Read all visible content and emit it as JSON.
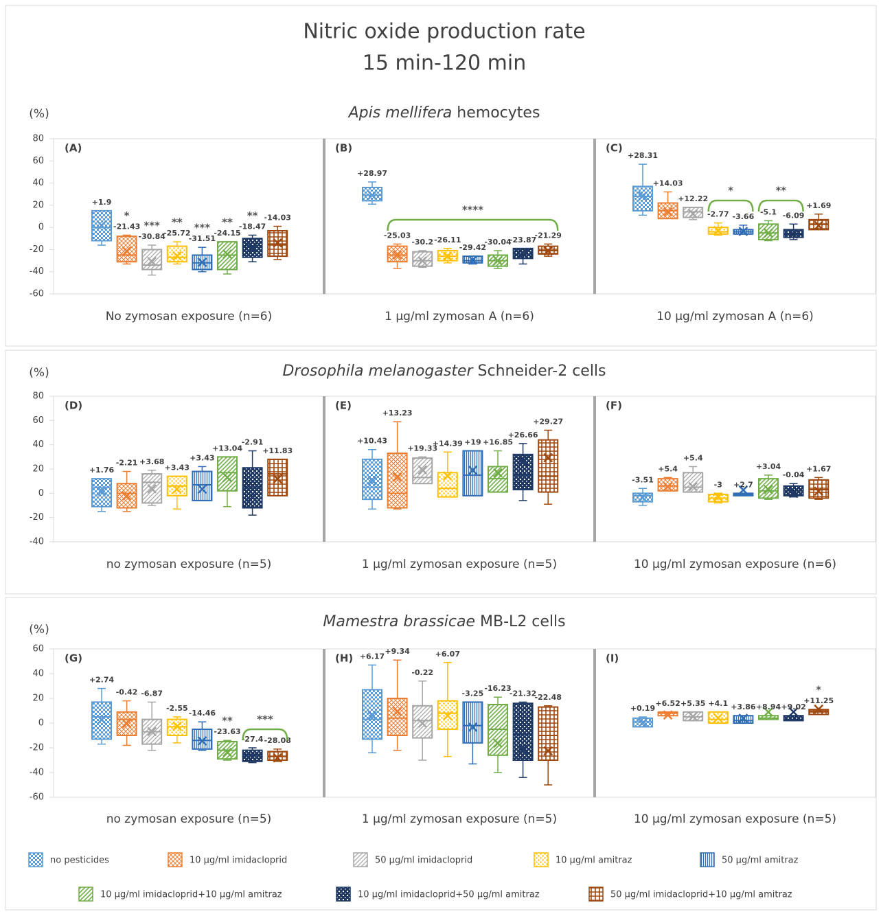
{
  "title": [
    "Nitric oxide production rate",
    "15 min-120 min"
  ],
  "legend": [
    {
      "name": "no pesticides",
      "color": "#5b9bd5"
    },
    {
      "name": "10 µg/ml imidacloprid",
      "color": "#ed7d31"
    },
    {
      "name": "50 µg/ml imidacloprid",
      "color": "#a5a5a5"
    },
    {
      "name": "10 µg/ml amitraz",
      "color": "#ffc000"
    },
    {
      "name": "50 µg/ml amitraz",
      "color": "#2f6db5"
    },
    {
      "name": "10 µg/ml imidacloprid+10 µg/ml amitraz",
      "color": "#70ad47"
    },
    {
      "name": "10 µg/ml imidacloprid+50 µg/ml amitraz",
      "color": "#1f3864"
    },
    {
      "name": "50 µg/ml imidacloprid+10 µg/ml amitraz",
      "color": "#9e480e"
    }
  ],
  "chart_data": [
    {
      "type": "box",
      "title_italic": "Apis mellifera",
      "title": "hemocytes",
      "unit": "(%)",
      "ylim": [
        -60,
        80
      ],
      "yticks": [
        -60,
        -40,
        -20,
        0,
        20,
        40,
        60,
        80
      ],
      "panels": [
        {
          "title": "(A)",
          "xlabel": "No zymosan exposure (n=6)",
          "boxes": {
            "whislo": [
              -16,
              -33,
              -43,
              -33,
              -40,
              -42,
              -31,
              -29
            ],
            "q1": [
              -12,
              -31,
              -38,
              -31,
              -38,
              -38,
              -27,
              -26
            ],
            "median": [
              0,
              -25,
              -34,
              -27,
              -32,
              -25,
              -18,
              -15
            ],
            "q3": [
              15,
              -8,
              -20,
              -17,
              -25,
              -13,
              -10,
              -3
            ],
            "whishi": [
              15,
              -7,
              -16,
              -13,
              -18,
              -13,
              -7,
              1
            ]
          },
          "values": [
            1.9,
            -21.43,
            -30.84,
            -25.72,
            -31.51,
            -24.15,
            -18.47,
            -14.03
          ],
          "value_labels": [
            "+1.9",
            "-21.43",
            "-30.84",
            "-25.72",
            "-31.51",
            "-24.15",
            "-18.47",
            "-14.03"
          ],
          "stars": [
            null,
            "*",
            "***",
            "**",
            "***",
            "**",
            "**",
            null
          ],
          "brackets": []
        },
        {
          "title": "(B)",
          "xlabel": "1 µg/ml zymosan A (n=6)",
          "boxes": {
            "whislo": [
              21,
              -37,
              -36,
              -32,
              -33,
              -37,
              -33,
              -26
            ],
            "q1": [
              24,
              -31,
              -35,
              -30,
              -32,
              -35,
              -28,
              -24
            ],
            "median": [
              29,
              -25,
              -30,
              -26,
              -30,
              -30,
              -24,
              -21
            ],
            "q3": [
              36,
              -17,
              -22,
              -21,
              -26,
              -25,
              -19,
              -17
            ],
            "whishi": [
              41,
              -15,
              -21,
              -19,
              -26,
              -21,
              -19,
              -15
            ]
          },
          "values": [
            28.97,
            -25.03,
            -30.2,
            -26.11,
            -29.42,
            -30.04,
            -23.87,
            -21.29
          ],
          "value_labels": [
            "+28.97",
            "-25.03",
            "-30.2",
            "-26.11",
            "-29.42",
            "-30.04",
            "-23.87",
            "-21.29"
          ],
          "stars": [
            null,
            null,
            null,
            null,
            null,
            null,
            null,
            null
          ],
          "brackets": [
            {
              "label": "****"
            }
          ]
        },
        {
          "title": "(C)",
          "xlabel": "10 µg/ml  zymosan A (n=6)",
          "boxes": {
            "whislo": [
              11,
              8,
              7,
              -7,
              -6,
              -12,
              -11,
              -2
            ],
            "q1": [
              15,
              8,
              9,
              -6,
              -6,
              -11,
              -9,
              -2
            ],
            "median": [
              28,
              15,
              14,
              -4,
              -4,
              -5,
              -6,
              3
            ],
            "q3": [
              37,
              22,
              18,
              0,
              -2,
              3,
              -2,
              7
            ],
            "whishi": [
              57,
              32,
              18,
              4,
              2,
              6,
              3,
              12
            ]
          },
          "values": [
            28.31,
            14.03,
            12.22,
            -2.77,
            -3.66,
            -5.1,
            -6.09,
            1.69
          ],
          "value_labels": [
            "+28.31",
            "+14.03",
            "+12.22",
            "-2.77",
            "-3.66",
            "-5.1",
            "-6.09",
            "+1.69"
          ],
          "stars": [
            null,
            null,
            null,
            null,
            null,
            null,
            null,
            null
          ],
          "brackets": [
            {
              "label": "*"
            },
            {
              "label": "**"
            }
          ]
        }
      ]
    },
    {
      "type": "box",
      "title_italic": "Drosophila melanogaster",
      "title": "Schneider-2 cells",
      "unit": "(%)",
      "ylim": [
        -40,
        80
      ],
      "yticks": [
        -40,
        -20,
        0,
        20,
        40,
        60,
        80
      ],
      "panels": [
        {
          "title": "(D)",
          "xlabel": "no zymosan exposure (n=5)",
          "boxes": {
            "whislo": [
              -15,
              -15,
              -10,
              -13,
              -6,
              -11,
              -18,
              -2
            ],
            "q1": [
              -11,
              -12,
              -8,
              -2,
              -6,
              2,
              -12,
              -2
            ],
            "median": [
              5,
              0,
              9,
              6,
              7,
              17,
              5,
              16
            ],
            "q3": [
              12,
              8,
              16,
              14,
              18,
              30,
              21,
              28
            ],
            "whishi": [
              12,
              18,
              19,
              14,
              22,
              30,
              35,
              28
            ]
          },
          "values": [
            1.76,
            -2.21,
            3.68,
            3.43,
            3.43,
            13.04,
            -2.91,
            11.83
          ],
          "value_labels": [
            "+1.76",
            "-2.21",
            "+3.68",
            "+3.43",
            "+3.43",
            "+13.04",
            "-2.91",
            "+11.83"
          ],
          "stars": [
            null,
            null,
            null,
            null,
            null,
            null,
            null,
            null
          ],
          "brackets": []
        },
        {
          "title": "(E)",
          "xlabel": "1 µg/ml zymosan exposure (n=5)",
          "boxes": {
            "whislo": [
              -13,
              -13,
              8,
              -3,
              -2,
              1,
              -6,
              -9
            ],
            "q1": [
              -5,
              -12,
              8,
              -3,
              -2,
              1,
              3,
              1
            ],
            "median": [
              5,
              0,
              13,
              4,
              15,
              12,
              15,
              14
            ],
            "q3": [
              28,
              33,
              29,
              17,
              35,
              22,
              32,
              44
            ],
            "whishi": [
              36,
              59,
              30,
              34,
              35,
              35,
              41,
              52
            ]
          },
          "values": [
            10.43,
            13.23,
            19.33,
            14.39,
            19,
            16.85,
            26.66,
            29.27
          ],
          "value_labels": [
            "+10.43",
            "+13.23",
            "+19.33",
            "+14.39",
            "+19",
            "+16.85",
            "+26.66",
            "+29.27"
          ],
          "stars": [
            null,
            null,
            null,
            null,
            null,
            null,
            null,
            null
          ],
          "brackets": []
        },
        {
          "title": "(F)",
          "xlabel": "10 µg/ml zymosan exposure (n=6)",
          "boxes": {
            "whislo": [
              -10,
              2,
              1,
              -8,
              -2,
              -5,
              -3,
              -5
            ],
            "q1": [
              -7,
              2,
              1,
              -7,
              -2,
              -4,
              -2,
              -4
            ],
            "median": [
              -2,
              6,
              5,
              -4,
              -1,
              2,
              2,
              3
            ],
            "q3": [
              0,
              12,
              17,
              -1,
              0,
              12,
              6,
              11
            ],
            "whishi": [
              4,
              13,
              22,
              0,
              0,
              15,
              8,
              13
            ]
          },
          "values": [
            -3.51,
            5.4,
            5.4,
            -3,
            2.7,
            3.04,
            -0.04,
            1.67
          ],
          "value_labels": [
            "-3.51",
            "+5.4",
            "+5.4",
            "-3",
            "+2.7",
            "+3.04",
            "-0.04",
            "+1.67"
          ],
          "stars": [
            null,
            null,
            null,
            null,
            null,
            null,
            null,
            null
          ],
          "brackets": []
        }
      ]
    },
    {
      "type": "box",
      "title_italic": "Mamestra brassicae",
      "title": "MB-L2 cells",
      "unit": "(%)",
      "ylim": [
        -60,
        60
      ],
      "yticks": [
        -60,
        -40,
        -20,
        0,
        20,
        40,
        60
      ],
      "panels": [
        {
          "title": "(G)",
          "xlabel": "no zymosan exposure (n=5)",
          "boxes": {
            "whislo": [
              -17,
              -18,
              -22,
              -16,
              -22,
              -30,
              -32,
              -31
            ],
            "q1": [
              -13,
              -10,
              -17,
              -10,
              -21,
              -29,
              -31,
              -30
            ],
            "median": [
              5,
              3,
              -7,
              -3,
              -14,
              -22,
              -26,
              -27
            ],
            "q3": [
              17,
              9,
              3,
              3,
              -5,
              -15,
              -22,
              -23
            ],
            "whishi": [
              28,
              18,
              17,
              5,
              1,
              -14,
              -20,
              -21
            ]
          },
          "values": [
            2.74,
            -0.42,
            -6.87,
            -2.55,
            -14.46,
            -23.63,
            -27.4,
            -28.08
          ],
          "value_labels": [
            "+2.74",
            "-0.42",
            "-6.87",
            "-2.55",
            "-14.46",
            "-23.63",
            "-27.4",
            "-28.08"
          ],
          "stars": [
            null,
            null,
            null,
            null,
            null,
            "**",
            null,
            null
          ],
          "brackets": [
            {
              "label": "***"
            }
          ]
        },
        {
          "title": "(H)",
          "xlabel": "1 µg/ml zymosan exposure (n=5)",
          "boxes": {
            "whislo": [
              -24,
              -22,
              -30,
              -27,
              -33,
              -40,
              -44,
              -50
            ],
            "q1": [
              -13,
              -10,
              -12,
              -5,
              -16,
              -26,
              -30,
              -30
            ],
            "median": [
              3,
              4,
              2,
              8,
              -2,
              -5,
              -9,
              -10
            ],
            "q3": [
              27,
              20,
              14,
              18,
              17,
              15,
              16,
              13
            ],
            "whishi": [
              47,
              51,
              34,
              49,
              17,
              21,
              17,
              14
            ]
          },
          "values": [
            6.17,
            9.34,
            -0.22,
            6.07,
            -3.25,
            -16.23,
            -21.32,
            -22.48
          ],
          "value_labels": [
            "+6.17",
            "+9.34",
            "-0.22",
            "+6.07",
            "-3.25",
            "-16.23",
            "-21.32",
            "-22.48"
          ],
          "stars": [
            null,
            null,
            null,
            null,
            null,
            null,
            null,
            null
          ],
          "brackets": []
        },
        {
          "title": "(I)",
          "xlabel": "10 µg/ml zymosan exposure (n=5)",
          "boxes": {
            "whislo": [
              -3,
              6,
              2,
              0,
              0,
              3,
              2,
              7
            ],
            "q1": [
              -3,
              6,
              2,
              0,
              0,
              3,
              2,
              7
            ],
            "median": [
              1,
              8,
              5,
              3,
              2,
              4,
              3,
              9
            ],
            "q3": [
              4,
              9,
              9,
              9,
              6,
              6,
              6,
              11
            ],
            "whishi": [
              5,
              9,
              9,
              9,
              6,
              6,
              6,
              11
            ]
          },
          "values": [
            0.19,
            6.52,
            5.35,
            4.1,
            3.86,
            8.94,
            9.02,
            11.25
          ],
          "value_labels": [
            "+0.19",
            "+6.52",
            "+5.35",
            "+4.1",
            "+3.86",
            "+8.94",
            "+9.02",
            "+11.25"
          ],
          "stars": [
            null,
            null,
            null,
            null,
            null,
            null,
            null,
            "*"
          ],
          "brackets": []
        }
      ]
    }
  ]
}
